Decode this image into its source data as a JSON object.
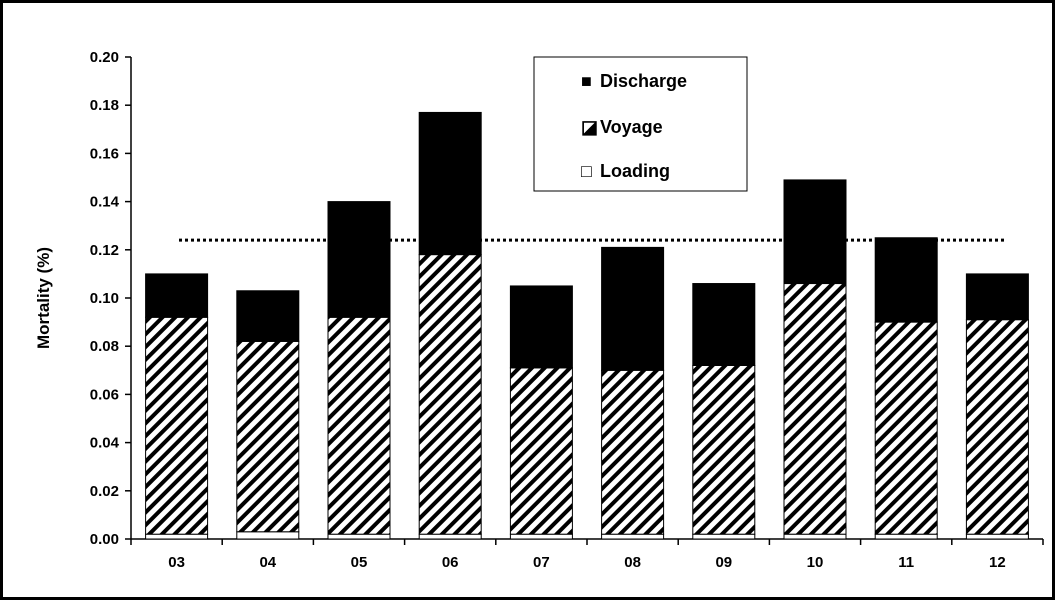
{
  "chart_data": {
    "type": "bar",
    "stacked": true,
    "categories": [
      "03",
      "04",
      "05",
      "06",
      "07",
      "08",
      "09",
      "10",
      "11",
      "12"
    ],
    "series": [
      {
        "name": "Loading",
        "fill": "white",
        "values": [
          0.002,
          0.003,
          0.002,
          0.002,
          0.002,
          0.002,
          0.002,
          0.002,
          0.002,
          0.002
        ]
      },
      {
        "name": "Voyage",
        "fill": "hatched",
        "values": [
          0.09,
          0.079,
          0.09,
          0.116,
          0.069,
          0.068,
          0.07,
          0.104,
          0.088,
          0.089
        ]
      },
      {
        "name": "Discharge",
        "fill": "black",
        "values": [
          0.018,
          0.021,
          0.048,
          0.059,
          0.034,
          0.051,
          0.034,
          0.043,
          0.035,
          0.019
        ]
      }
    ],
    "reference_line": {
      "style": "dotted",
      "value": 0.124
    },
    "ylabel": "Mortality (%)",
    "xlabel": "",
    "ylim": [
      0,
      0.2
    ],
    "yticks": [
      "0.00",
      "0.02",
      "0.04",
      "0.06",
      "0.08",
      "0.10",
      "0.12",
      "0.14",
      "0.16",
      "0.18",
      "0.20"
    ],
    "legend": {
      "placement": "top-center",
      "entries": [
        {
          "label": "Discharge",
          "swatch": "■"
        },
        {
          "label": "Voyage",
          "swatch": "◪"
        },
        {
          "label": "Loading",
          "swatch": "□"
        }
      ]
    },
    "grid": false,
    "colors": {
      "bar_fill": "#000000",
      "hatch": "#000000",
      "background": "#ffffff"
    }
  }
}
